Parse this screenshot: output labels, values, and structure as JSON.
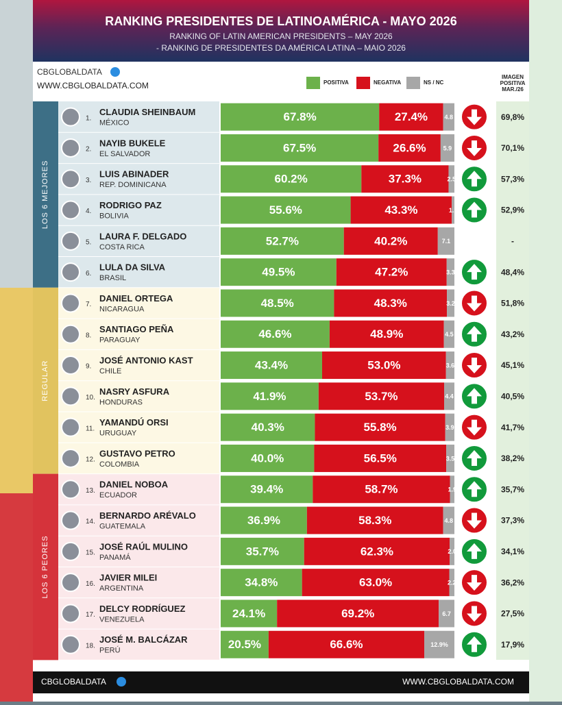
{
  "chart_data": {
    "type": "stacked-bar",
    "title": "RANKING PRESIDENTES DE LATINOAMÉRICA - MAYO 2026",
    "subtitle": "RANKING OF LATIN AMERICAN PRESIDENTS – MAY 2026",
    "subtitle2": "- RANKING DE PRESIDENTES DA AMÉRICA LATINA – MAIO 2026",
    "brand": "CBGLOBALDATA",
    "website": "WWW.CBGLOBALDATA.COM",
    "previous_title": "IMAGEN POSITIVA MAR./26",
    "ranks": [
      "1.",
      "2.",
      "3.",
      "4.",
      "5.",
      "6.",
      "7.",
      "8.",
      "9.",
      "10.",
      "11.",
      "12.",
      "13.",
      "14.",
      "15.",
      "16.",
      "17.",
      "18."
    ],
    "categories": [
      "CLAUDIA SHEINBAUM",
      "NAYIB BUKELE",
      "LUIS ABINADER",
      "RODRIGO PAZ",
      "LAURA F. DELGADO",
      "LULA DA SILVA",
      "DANIEL ORTEGA",
      "SANTIAGO PEÑA",
      "JOSÉ ANTONIO KAST",
      "NASRY ASFURA",
      "YAMANDÚ ORSI",
      "GUSTAVO PETRO",
      "DANIEL NOBOA",
      "BERNARDO ARÉVALO",
      "JOSÉ RAÚL MULINO",
      "JAVIER MILEI",
      "DELCY RODRÍGUEZ",
      "JOSÉ M. BALCÁZAR"
    ],
    "countries": [
      "MÉXICO",
      "EL SALVADOR",
      "REP. DOMINICANA",
      "BOLIVIA",
      "COSTA RICA",
      "BRASIL",
      "NICARAGUA",
      "PARAGUAY",
      "CHILE",
      "HONDURAS",
      "URUGUAY",
      "COLOMBIA",
      "ECUADOR",
      "GUATEMALA",
      "PANAMÁ",
      "ARGENTINA",
      "VENEZUELA",
      "PERÚ"
    ],
    "groups": [
      {
        "name": "LOS 6 MEJORES",
        "start": 0,
        "end": 5,
        "color": "#3d6f86",
        "background": "#dde8ec"
      },
      {
        "name": "REGULAR",
        "start": 6,
        "end": 11,
        "color": "#e1c35f",
        "background": "#fdf8e4"
      },
      {
        "name": "LOS 6 PEORES",
        "start": 12,
        "end": 17,
        "color": "#d5333b",
        "background": "#fbe8ea"
      }
    ],
    "xlim": [
      0,
      100
    ],
    "series": [
      {
        "name": "POSITIVA",
        "color": "#6cb14b",
        "values": [
          67.8,
          67.5,
          60.2,
          55.6,
          52.7,
          49.5,
          48.5,
          46.6,
          43.4,
          41.9,
          40.3,
          40.0,
          39.4,
          36.9,
          35.7,
          34.8,
          24.1,
          20.5
        ],
        "value_labels": [
          "67.8%",
          "67.5%",
          "60.2%",
          "55.6%",
          "52.7%",
          "49.5%",
          "48.5%",
          "46.6%",
          "43.4%",
          "41.9%",
          "40.3%",
          "40.0%",
          "39.4%",
          "36.9%",
          "35.7%",
          "34.8%",
          "24.1%",
          "20.5%"
        ]
      },
      {
        "name": "NEGATIVA",
        "color": "#d6111c",
        "values": [
          27.4,
          26.6,
          37.3,
          43.3,
          40.2,
          47.2,
          48.3,
          48.9,
          53.0,
          53.7,
          55.8,
          56.5,
          58.7,
          58.3,
          62.3,
          63.0,
          69.2,
          66.6
        ],
        "value_labels": [
          "27.4%",
          "26.6%",
          "37.3%",
          "43.3%",
          "40.2%",
          "47.2%",
          "48.3%",
          "48.9%",
          "53.0%",
          "53.7%",
          "55.8%",
          "56.5%",
          "58.7%",
          "58.3%",
          "62.3%",
          "63.0%",
          "69.2%",
          "66.6%"
        ]
      },
      {
        "name": "NS / NC",
        "color": "#a7a7a7",
        "values": [
          4.8,
          5.9,
          2.5,
          1.1,
          7.1,
          3.3,
          3.2,
          4.5,
          3.6,
          4.4,
          3.9,
          3.5,
          1.9,
          4.8,
          2.0,
          2.2,
          6.7,
          12.9
        ],
        "value_labels": [
          "4.8",
          "5.9",
          "2.5",
          "1.1",
          "7.1",
          "3.3",
          "3.2",
          "4.5",
          "3.6",
          "4.4",
          "3.9",
          "3.5",
          "1.9",
          "4.8",
          "2.0",
          "2.2",
          "6.7",
          "12.9%"
        ]
      }
    ],
    "trend": [
      "down",
      "down",
      "up",
      "up",
      null,
      "up",
      "down",
      "up",
      "down",
      "up",
      "down",
      "up",
      "up",
      "down",
      "up",
      "down",
      "down",
      "up"
    ],
    "previous": [
      69.8,
      70.1,
      57.3,
      52.9,
      null,
      48.4,
      51.8,
      43.2,
      45.1,
      40.5,
      41.7,
      38.2,
      35.7,
      37.3,
      34.1,
      36.2,
      27.5,
      17.9
    ],
    "previous_labels": [
      "69,8%",
      "70,1%",
      "57,3%",
      "52,9%",
      "-",
      "48,4%",
      "51,8%",
      "43,2%",
      "45,1%",
      "40,5%",
      "41,7%",
      "38,2%",
      "35,7%",
      "37,3%",
      "34,1%",
      "36,2%",
      "27,5%",
      "17,9%"
    ]
  }
}
